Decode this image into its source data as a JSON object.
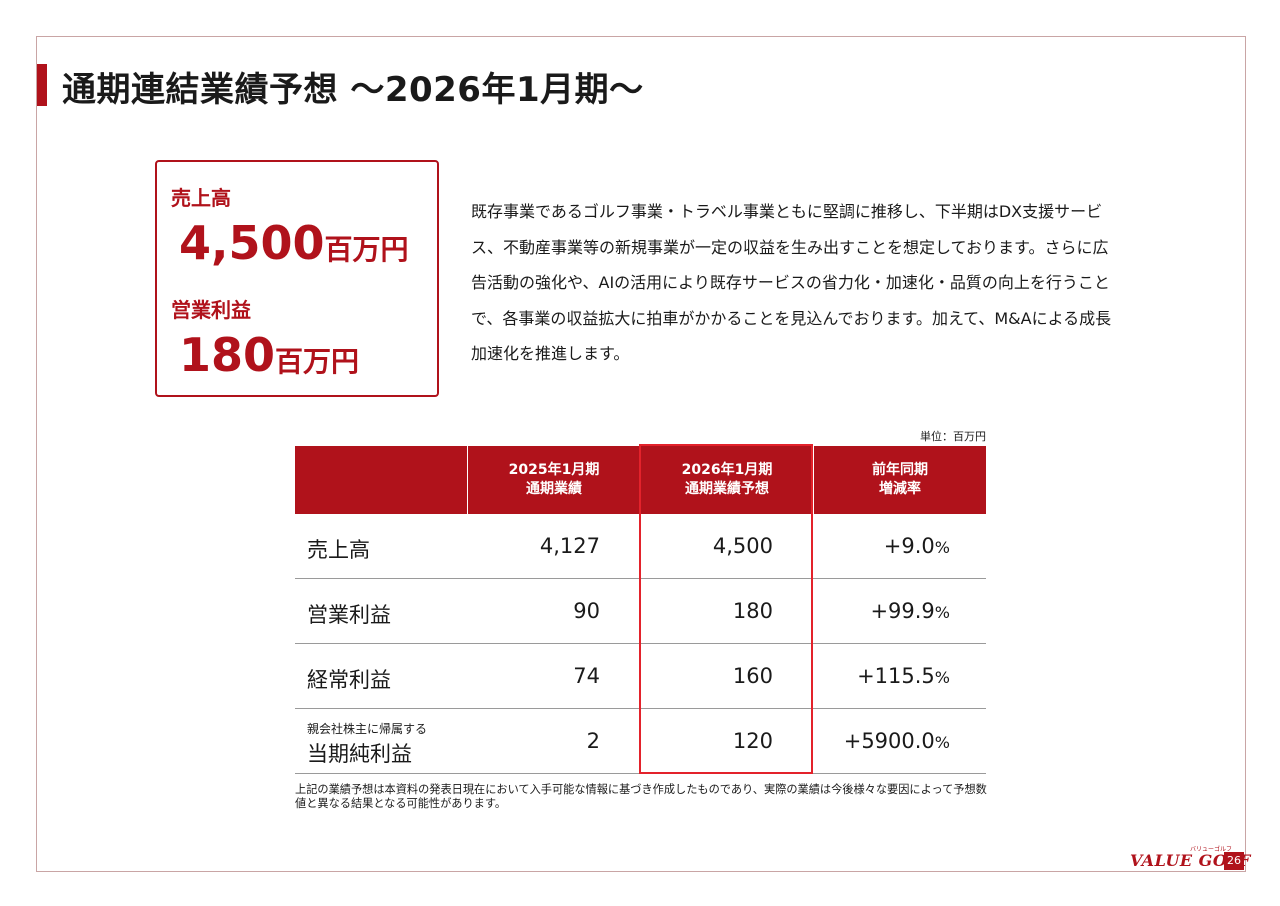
{
  "page": {
    "title": "通期連結業績予想 ～2026年1月期～",
    "page_number": "26"
  },
  "summary": {
    "sales_label": "売上高",
    "sales_value": "4,500",
    "sales_unit": "百万円",
    "op_label": "営業利益",
    "op_value": "180",
    "op_unit": "百万円"
  },
  "description": "既存事業であるゴルフ事業・トラベル事業ともに堅調に推移し、下半期はDX支援サービス、不動産事業等の新規事業が一定の収益を生み出すことを想定しております。さらに広告活動の強化や、AIの活用により既存サービスの省力化・加速化・品質の向上を行うことで、各事業の収益拡大に拍車がかかることを見込んでおります。加えて、M&Aによる成長加速化を推進します。",
  "table": {
    "unit_note": "単位：百万円",
    "headers": [
      "2025年1月期\n通期業績",
      "2026年1月期\n通期業績予想",
      "前年同期\n増減率"
    ],
    "rows": [
      {
        "label": "売上高",
        "sublabel": "",
        "fy2025": "4,127",
        "fy2026": "4,500",
        "change": "+9.0",
        "pct": "%"
      },
      {
        "label": "営業利益",
        "sublabel": "",
        "fy2025": "90",
        "fy2026": "180",
        "change": "+99.9",
        "pct": "%"
      },
      {
        "label": "経常利益",
        "sublabel": "",
        "fy2025": "74",
        "fy2026": "160",
        "change": "+115.5",
        "pct": "%"
      },
      {
        "label": "当期純利益",
        "sublabel": "親会社株主に帰属する",
        "fy2025": "2",
        "fy2026": "120",
        "change": "+5900.0",
        "pct": "%"
      }
    ]
  },
  "footnote": "上記の業績予想は本資料の発表日現在において入手可能な情報に基づき作成したものであり、実際の業績は今後様々な要因によって予想数値と異なる結果となる可能性があります。",
  "logo": {
    "text": "VALUE GOLF",
    "kana": "バリューゴルフ"
  },
  "colors": {
    "brand_red": "#b0121b",
    "highlight_red": "#e3222b"
  }
}
